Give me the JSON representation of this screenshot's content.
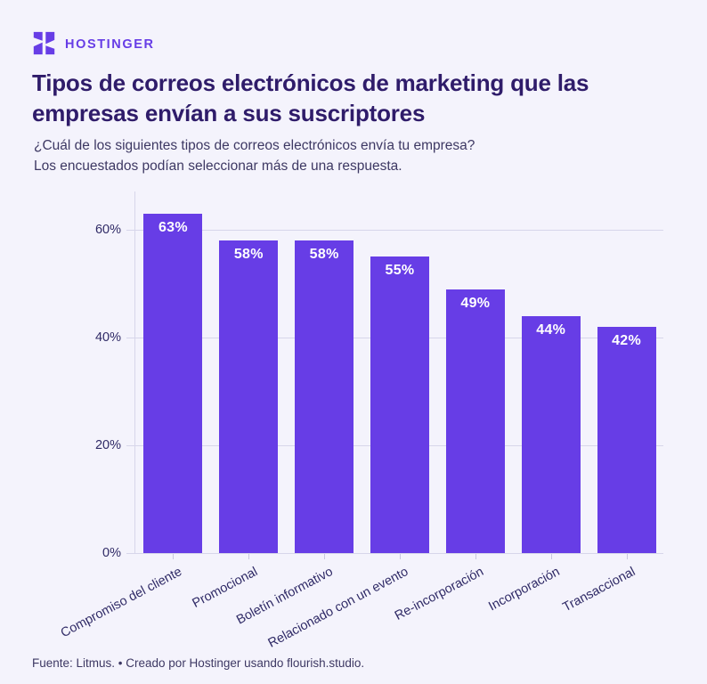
{
  "colors": {
    "brand": "#673DE6",
    "background": "#F4F3FC",
    "title_text": "#2F1C6A"
  },
  "brand": {
    "logo_text": "HOSTINGER",
    "logo_icon": "hostinger-h-mark"
  },
  "header": {
    "title_line1": "Tipos de correos electrónicos de marketing que las",
    "title_line2": "empresas envían a sus suscriptores",
    "subtitle_line1": "¿Cuál de los siguientes tipos de correos electrónicos envía tu empresa?",
    "subtitle_line2": "Los encuestados podían seleccionar más de una respuesta."
  },
  "chart_data": {
    "type": "bar",
    "title": "Tipos de correos electrónicos de marketing que las empresas envían a sus suscriptores",
    "subtitle": "¿Cuál de los siguientes tipos de correos electrónicos envía tu empresa? Los encuestados podían seleccionar más de una respuesta.",
    "categories": [
      "Compromiso del cliente",
      "Promocional",
      "Boletín informativo",
      "Relacionado con un evento",
      "Re-incorporación",
      "Incorporación",
      "Transaccional"
    ],
    "values": [
      63,
      58,
      58,
      55,
      49,
      44,
      42
    ],
    "value_labels": [
      "63%",
      "58%",
      "58%",
      "55%",
      "49%",
      "44%",
      "42%"
    ],
    "xlabel": "",
    "ylabel": "",
    "ylim": [
      0,
      67
    ],
    "yticks": [
      "0%",
      "20%",
      "40%",
      "60%"
    ],
    "ytick_values": [
      0,
      20,
      40,
      60
    ],
    "grid": true,
    "legend": false,
    "bar_color": "#673DE6",
    "value_label_color": "#FFFFFF"
  },
  "footer": {
    "source": "Fuente: Litmus. • Creado por Hostinger usando flourish.studio."
  }
}
